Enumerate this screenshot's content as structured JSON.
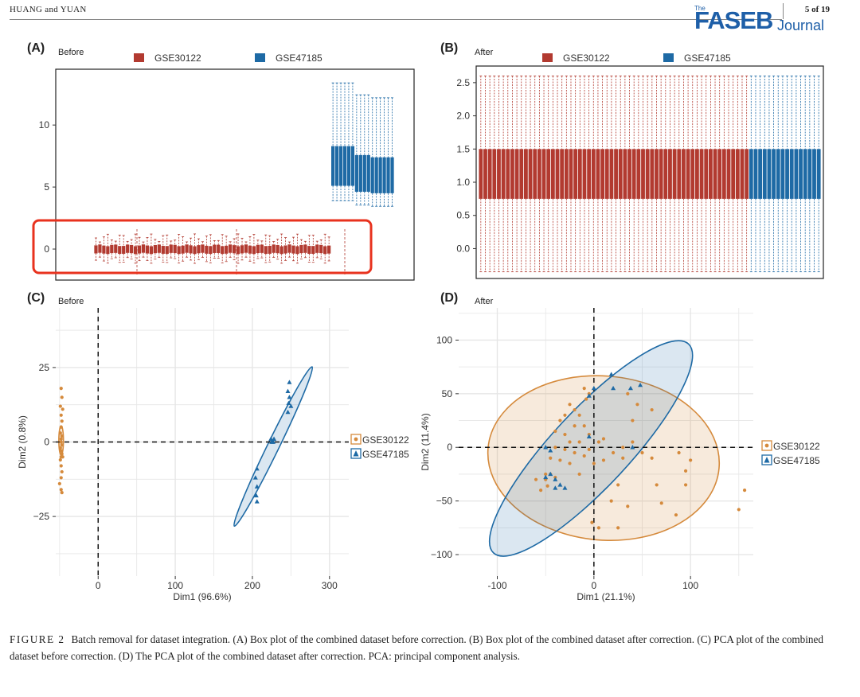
{
  "header": {
    "authors": "HUANG and YUAN",
    "page": "5 of 19",
    "journal_logo": {
      "the": "The",
      "name": "FASEB",
      "suffix": "Journal"
    }
  },
  "caption": {
    "label": "FIGURE 2",
    "text": "Batch removal for dataset integration. (A) Box plot of the combined dataset before correction. (B) Box plot of the combined dataset after correction. (C) PCA plot of the combined dataset before correction. (D) The PCA plot of the combined dataset after correction. PCA: principal component analysis."
  },
  "colors": {
    "red": "#b23a30",
    "blue": "#1e6aa5",
    "orange": "#d58a3c",
    "highlight": "#e8321e"
  },
  "chart_data": [
    {
      "panel": "(A)",
      "subtitle": "Before",
      "type": "box",
      "legend": [
        "GSE30122",
        "GSE47185"
      ],
      "legend_position": "top",
      "yticks": [
        0,
        5,
        10
      ],
      "ylim": [
        -2.5,
        14.5
      ],
      "series": [
        {
          "name": "GSE30122",
          "n_boxes": 60,
          "q1": -0.3,
          "q3": 0.3,
          "whisker_low": -1.2,
          "whisker_high": 1.2
        },
        {
          "name": "GSE47185",
          "n_boxes": 16,
          "q1": 5.2,
          "q3": 8.4,
          "whisker_low": 3.8,
          "whisker_high": 13.6
        }
      ],
      "annotation": "red box highlighting GSE30122 boxes"
    },
    {
      "panel": "(B)",
      "subtitle": "After",
      "type": "box",
      "legend": [
        "GSE30122",
        "GSE47185"
      ],
      "legend_position": "top",
      "yticks": [
        "0.0",
        "0.5",
        "1.0",
        "1.5",
        "2.0",
        "2.5"
      ],
      "ylim": [
        -0.45,
        2.75
      ],
      "series": [
        {
          "name": "GSE30122",
          "n_boxes": 60,
          "q1": 0.75,
          "q3": 1.5,
          "whisker_low": -0.35,
          "whisker_high": 2.6
        },
        {
          "name": "GSE47185",
          "n_boxes": 16,
          "q1": 0.75,
          "q3": 1.5,
          "whisker_low": -0.35,
          "whisker_high": 2.6
        }
      ]
    },
    {
      "panel": "(C)",
      "subtitle": "Before",
      "type": "scatter",
      "xlabel": "Dim1 (96.6%)",
      "ylabel": "Dim2 (0.8%)",
      "xticks": [
        0,
        100,
        200,
        300
      ],
      "yticks": [
        25,
        0,
        -25
      ],
      "xlim": [
        -55,
        325
      ],
      "ylim": [
        -45,
        45
      ],
      "legend": [
        "GSE30122",
        "GSE47185"
      ],
      "legend_position": "right",
      "series": [
        {
          "name": "GSE30122",
          "marker": "circle",
          "points": [
            [
              -48,
              18
            ],
            [
              -47,
              15
            ],
            [
              -49,
              12
            ],
            [
              -48,
              9
            ],
            [
              -47,
              7
            ],
            [
              -48,
              5
            ],
            [
              -49,
              3
            ],
            [
              -47,
              2
            ],
            [
              -48,
              1
            ],
            [
              -48,
              0
            ],
            [
              -47,
              -1
            ],
            [
              -49,
              -2
            ],
            [
              -48,
              -3
            ],
            [
              -47,
              -4
            ],
            [
              -48,
              -5
            ],
            [
              -49,
              -6
            ],
            [
              -48,
              -8
            ],
            [
              -47,
              -10
            ],
            [
              -48,
              -12
            ],
            [
              -50,
              -14
            ],
            [
              -48,
              -16
            ],
            [
              -47,
              -17
            ],
            [
              -46,
              11
            ],
            [
              -46,
              -5
            ]
          ],
          "ellipse": {
            "cx": -48,
            "cy": 0.5,
            "rx": 3,
            "ry": 19,
            "angle": 0
          }
        },
        {
          "name": "GSE47185",
          "marker": "triangle",
          "points": [
            [
              206,
              -9
            ],
            [
              204,
              -12
            ],
            [
              206,
              -15
            ],
            [
              205,
              -18
            ],
            [
              206,
              -20
            ],
            [
              224,
              1
            ],
            [
              228,
              1
            ],
            [
              226,
              0
            ],
            [
              246,
              10
            ],
            [
              247,
              13
            ],
            [
              248,
              15
            ],
            [
              250,
              12
            ],
            [
              246,
              17
            ],
            [
              248,
              20
            ],
            [
              227,
              0
            ],
            [
              225,
              0
            ]
          ],
          "ellipse": {
            "cx": 227,
            "cy": -1.5,
            "rx": 115,
            "ry": 7.5,
            "angle": 64
          }
        }
      ]
    },
    {
      "panel": "(D)",
      "subtitle": "After",
      "type": "scatter",
      "xlabel": "Dim1 (21.1%)",
      "ylabel": "Dim2 (11.4%)",
      "xticks": [
        -100,
        0,
        100
      ],
      "yticks": [
        100,
        50,
        0,
        -50,
        -100
      ],
      "xlim": [
        -140,
        165
      ],
      "ylim": [
        -120,
        130
      ],
      "legend": [
        "GSE30122",
        "GSE47185"
      ],
      "legend_position": "right",
      "series": [
        {
          "name": "GSE30122",
          "marker": "circle",
          "points": [
            [
              -10,
              55
            ],
            [
              -5,
              50
            ],
            [
              -25,
              40
            ],
            [
              -20,
              35
            ],
            [
              -30,
              30
            ],
            [
              -15,
              30
            ],
            [
              -35,
              25
            ],
            [
              -20,
              20
            ],
            [
              -10,
              20
            ],
            [
              -40,
              15
            ],
            [
              -30,
              12
            ],
            [
              -5,
              12
            ],
            [
              10,
              8
            ],
            [
              -25,
              5
            ],
            [
              -15,
              5
            ],
            [
              5,
              5
            ],
            [
              -40,
              0
            ],
            [
              -30,
              -2
            ],
            [
              -20,
              -5
            ],
            [
              -10,
              -8
            ],
            [
              -45,
              -10
            ],
            [
              -35,
              -12
            ],
            [
              -25,
              -15
            ],
            [
              -45,
              -25
            ],
            [
              -40,
              -28
            ],
            [
              -50,
              -30
            ],
            [
              -55,
              -40
            ],
            [
              -48,
              -36
            ],
            [
              0,
              -15
            ],
            [
              10,
              -12
            ],
            [
              20,
              -5
            ],
            [
              30,
              0
            ],
            [
              40,
              5
            ],
            [
              50,
              -5
            ],
            [
              60,
              -10
            ],
            [
              25,
              -35
            ],
            [
              18,
              -50
            ],
            [
              35,
              -55
            ],
            [
              -2,
              -70
            ],
            [
              5,
              -75
            ],
            [
              25,
              -75
            ],
            [
              65,
              -35
            ],
            [
              70,
              -52
            ],
            [
              85,
              -63
            ],
            [
              95,
              -22
            ],
            [
              100,
              -12
            ],
            [
              95,
              -35
            ],
            [
              88,
              -5
            ],
            [
              150,
              -58
            ],
            [
              156,
              -40
            ],
            [
              -5,
              -2
            ],
            [
              30,
              -10
            ],
            [
              40,
              25
            ],
            [
              60,
              35
            ],
            [
              45,
              40
            ],
            [
              35,
              50
            ],
            [
              -8,
              45
            ],
            [
              -60,
              -30
            ],
            [
              -50,
              -25
            ],
            [
              -15,
              -25
            ]
          ],
          "ellipse": {
            "cx": 10,
            "cy": -10,
            "rx": 120,
            "ry": 85,
            "angle": -5
          }
        },
        {
          "name": "GSE47185",
          "marker": "triangle",
          "points": [
            [
              -40,
              -30
            ],
            [
              -35,
              -35
            ],
            [
              -45,
              -25
            ],
            [
              -30,
              -38
            ],
            [
              -40,
              -38
            ],
            [
              -50,
              -28
            ],
            [
              -50,
              0
            ],
            [
              0,
              55
            ],
            [
              -5,
              48
            ],
            [
              18,
              68
            ],
            [
              20,
              55
            ],
            [
              48,
              58
            ],
            [
              38,
              55
            ],
            [
              40,
              0
            ],
            [
              -45,
              -3
            ],
            [
              -5,
              10
            ]
          ],
          "ellipse": {
            "cx": -3,
            "cy": -1,
            "rx": 148,
            "ry": 40,
            "angle": 47
          }
        }
      ]
    }
  ]
}
